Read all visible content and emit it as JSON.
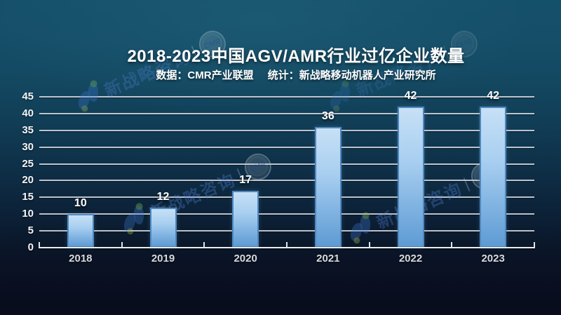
{
  "header": {
    "title": "2018-2023中国AGV/AMR行业过亿企业数量",
    "subtitle_source": "数据：CMR产业联盟",
    "subtitle_stat": "统计：新战略移动机器人产业研究所"
  },
  "chart_data": {
    "type": "bar",
    "title": "2018-2023中国AGV/AMR行业过亿企业数量",
    "categories": [
      "2018",
      "2019",
      "2020",
      "2021",
      "2022",
      "2023"
    ],
    "values": [
      10,
      12,
      17,
      36,
      42,
      42
    ],
    "xlabel": "",
    "ylabel": "",
    "ylim": [
      0,
      45
    ],
    "ytick_step": 5,
    "grid": true,
    "legend": "none",
    "colors": {
      "bar_top": "#c6e0f6",
      "bar_bottom": "#5e9bd3",
      "bar_border": "#4f88bf",
      "grid_line": "#ced4db",
      "axis_line": "#e9edf1",
      "value_label": "#ffffff",
      "tick_label": "#f2f5f8",
      "background_top": "#15506a",
      "background_bottom": "#080c1b"
    }
  },
  "watermark": {
    "brand_text": "新战略咨询",
    "separator": "|",
    "badge_text": "CMR"
  }
}
